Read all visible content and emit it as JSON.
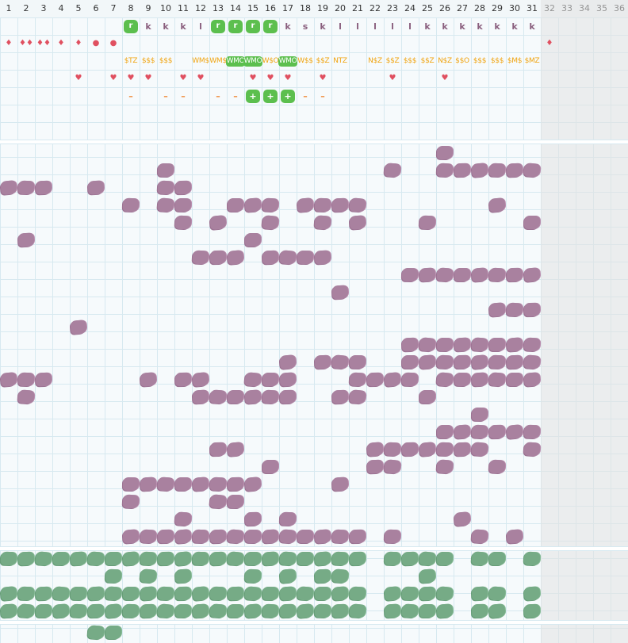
{
  "columns": [
    "1",
    "2",
    "3",
    "4",
    "5",
    "6",
    "7",
    "8",
    "9",
    "10",
    "11",
    "12",
    "13",
    "14",
    "15",
    "16",
    "17",
    "18",
    "19",
    "20",
    "21",
    "22",
    "23",
    "24",
    "25",
    "26",
    "27",
    "28",
    "29",
    "30",
    "31",
    "32",
    "33",
    "34",
    "35",
    "36"
  ],
  "active_column_count": 31,
  "letter_row": [
    {
      "col": 8,
      "text": "r",
      "highlight": true
    },
    {
      "col": 9,
      "text": "k"
    },
    {
      "col": 10,
      "text": "k"
    },
    {
      "col": 11,
      "text": "k"
    },
    {
      "col": 12,
      "text": "l"
    },
    {
      "col": 13,
      "text": "r",
      "highlight": true
    },
    {
      "col": 14,
      "text": "r",
      "highlight": true
    },
    {
      "col": 15,
      "text": "r",
      "highlight": true
    },
    {
      "col": 16,
      "text": "r",
      "highlight": true
    },
    {
      "col": 17,
      "text": "k"
    },
    {
      "col": 18,
      "text": "s"
    },
    {
      "col": 19,
      "text": "k"
    },
    {
      "col": 20,
      "text": "l"
    },
    {
      "col": 21,
      "text": "l"
    },
    {
      "col": 22,
      "text": "l"
    },
    {
      "col": 23,
      "text": "l"
    },
    {
      "col": 24,
      "text": "l"
    },
    {
      "col": 25,
      "text": "k"
    },
    {
      "col": 26,
      "text": "k"
    },
    {
      "col": 27,
      "text": "k"
    },
    {
      "col": 28,
      "text": "k"
    },
    {
      "col": 29,
      "text": "k"
    },
    {
      "col": 30,
      "text": "k"
    },
    {
      "col": 31,
      "text": "k"
    }
  ],
  "marks_row": [
    {
      "col": 1,
      "symbol": "♦"
    },
    {
      "col": 2,
      "symbol": "♦♦"
    },
    {
      "col": 3,
      "symbol": "♦♦"
    },
    {
      "col": 4,
      "symbol": "♦"
    },
    {
      "col": 5,
      "symbol": "♦"
    },
    {
      "col": 6,
      "symbol": "●"
    },
    {
      "col": 7,
      "symbol": "●"
    },
    {
      "col": 32,
      "symbol": "♦"
    }
  ],
  "codes_row": [
    {
      "col": 8,
      "text": "$TZ"
    },
    {
      "col": 9,
      "text": "$$$"
    },
    {
      "col": 10,
      "text": "$$$"
    },
    {
      "col": 12,
      "text": "WM$"
    },
    {
      "col": 13,
      "text": "WM$"
    },
    {
      "col": 14,
      "text": "WMO",
      "highlight": true
    },
    {
      "col": 15,
      "text": "WMO",
      "highlight": true
    },
    {
      "col": 16,
      "text": "W$O"
    },
    {
      "col": 17,
      "text": "WMO",
      "highlight": true
    },
    {
      "col": 18,
      "text": "W$$"
    },
    {
      "col": 19,
      "text": "$$Z"
    },
    {
      "col": 20,
      "text": "NTZ"
    },
    {
      "col": 22,
      "text": "N$Z"
    },
    {
      "col": 23,
      "text": "$$Z"
    },
    {
      "col": 24,
      "text": "$$$"
    },
    {
      "col": 25,
      "text": "$$Z"
    },
    {
      "col": 26,
      "text": "N$Z"
    },
    {
      "col": 27,
      "text": "$$O"
    },
    {
      "col": 28,
      "text": "$$$"
    },
    {
      "col": 29,
      "text": "$$$"
    },
    {
      "col": 30,
      "text": "$M$"
    },
    {
      "col": 31,
      "text": "$MZ"
    }
  ],
  "hearts_row": [
    {
      "col": 5,
      "symbol": "♥"
    },
    {
      "col": 7,
      "symbol": "♥"
    },
    {
      "col": 8,
      "symbol": "♥"
    },
    {
      "col": 9,
      "symbol": "♥"
    },
    {
      "col": 11,
      "symbol": "♥"
    },
    {
      "col": 12,
      "symbol": "♥"
    },
    {
      "col": 15,
      "symbol": "♥"
    },
    {
      "col": 16,
      "symbol": "♥"
    },
    {
      "col": 17,
      "symbol": "♥"
    },
    {
      "col": 19,
      "symbol": "♥"
    },
    {
      "col": 23,
      "symbol": "♥"
    },
    {
      "col": 26,
      "symbol": "♥"
    }
  ],
  "dash_row": [
    {
      "col": 8,
      "text": "–"
    },
    {
      "col": 10,
      "text": "–"
    },
    {
      "col": 11,
      "text": "–"
    },
    {
      "col": 13,
      "text": "–"
    },
    {
      "col": 14,
      "text": "–"
    },
    {
      "col": 15,
      "text": "+",
      "highlight": true
    },
    {
      "col": 16,
      "text": "+",
      "highlight": true
    },
    {
      "col": 17,
      "text": "+",
      "highlight": true
    },
    {
      "col": 18,
      "text": "–"
    },
    {
      "col": 19,
      "text": "–"
    }
  ],
  "purple_grid": [
    [
      26
    ],
    [
      10,
      23,
      26,
      27,
      28,
      29,
      30,
      31
    ],
    [
      1,
      2,
      3,
      6,
      10,
      11
    ],
    [
      8,
      10,
      11,
      14,
      15,
      16,
      18,
      19,
      20,
      21,
      29
    ],
    [
      11,
      13,
      16,
      19,
      21,
      25,
      31
    ],
    [
      2,
      15
    ],
    [
      12,
      13,
      14,
      16,
      17,
      18,
      19
    ],
    [
      24,
      25,
      26,
      27,
      28,
      29,
      30,
      31
    ],
    [
      20
    ],
    [
      29,
      30,
      31
    ],
    [
      5
    ],
    [
      24,
      25,
      26,
      27,
      28,
      29,
      30,
      31
    ],
    [
      17,
      19,
      20,
      21,
      24,
      25,
      26,
      27,
      28,
      29,
      30,
      31
    ],
    [
      1,
      2,
      3,
      9,
      11,
      12,
      15,
      16,
      17,
      21,
      22,
      23,
      24,
      26,
      27,
      28,
      29,
      30,
      31
    ],
    [
      2,
      12,
      13,
      14,
      15,
      16,
      17,
      20,
      21,
      25
    ],
    [
      28
    ],
    [
      26,
      27,
      28,
      29,
      30,
      31
    ],
    [
      13,
      14,
      22,
      23,
      24,
      25,
      26,
      27,
      28,
      31
    ],
    [
      16,
      22,
      23,
      26,
      29
    ],
    [
      8,
      9,
      10,
      11,
      12,
      13,
      14,
      15,
      20
    ],
    [
      8,
      13,
      14
    ],
    [
      11,
      15,
      17,
      27
    ],
    [
      8,
      9,
      10,
      11,
      12,
      13,
      14,
      15,
      16,
      17,
      18,
      19,
      20,
      21,
      23,
      28,
      30
    ]
  ],
  "green_grid": [
    [
      1,
      2,
      3,
      4,
      5,
      6,
      7,
      8,
      9,
      10,
      11,
      12,
      13,
      14,
      15,
      16,
      17,
      18,
      19,
      20,
      21,
      23,
      24,
      25,
      26,
      28,
      29,
      31
    ],
    [
      7,
      9,
      11,
      15,
      17,
      19,
      20,
      25
    ],
    [
      1,
      2,
      3,
      4,
      5,
      6,
      7,
      8,
      9,
      10,
      11,
      12,
      13,
      14,
      15,
      16,
      17,
      18,
      19,
      20,
      21,
      23,
      24,
      25,
      26,
      28,
      29,
      31
    ],
    [
      1,
      2,
      3,
      4,
      5,
      6,
      7,
      8,
      9,
      10,
      11,
      12,
      13,
      14,
      15,
      16,
      17,
      18,
      19,
      20,
      21,
      23,
      24,
      25,
      26,
      28,
      29,
      31
    ]
  ],
  "bottom_grid": [
    [
      6,
      7
    ]
  ],
  "colors": {
    "purple": "#a9819f",
    "green": "#76ab86",
    "highlight": "#5cbf4e",
    "code_text": "#f0a40f",
    "marks": "#e05060",
    "dash": "#f08a3a"
  }
}
